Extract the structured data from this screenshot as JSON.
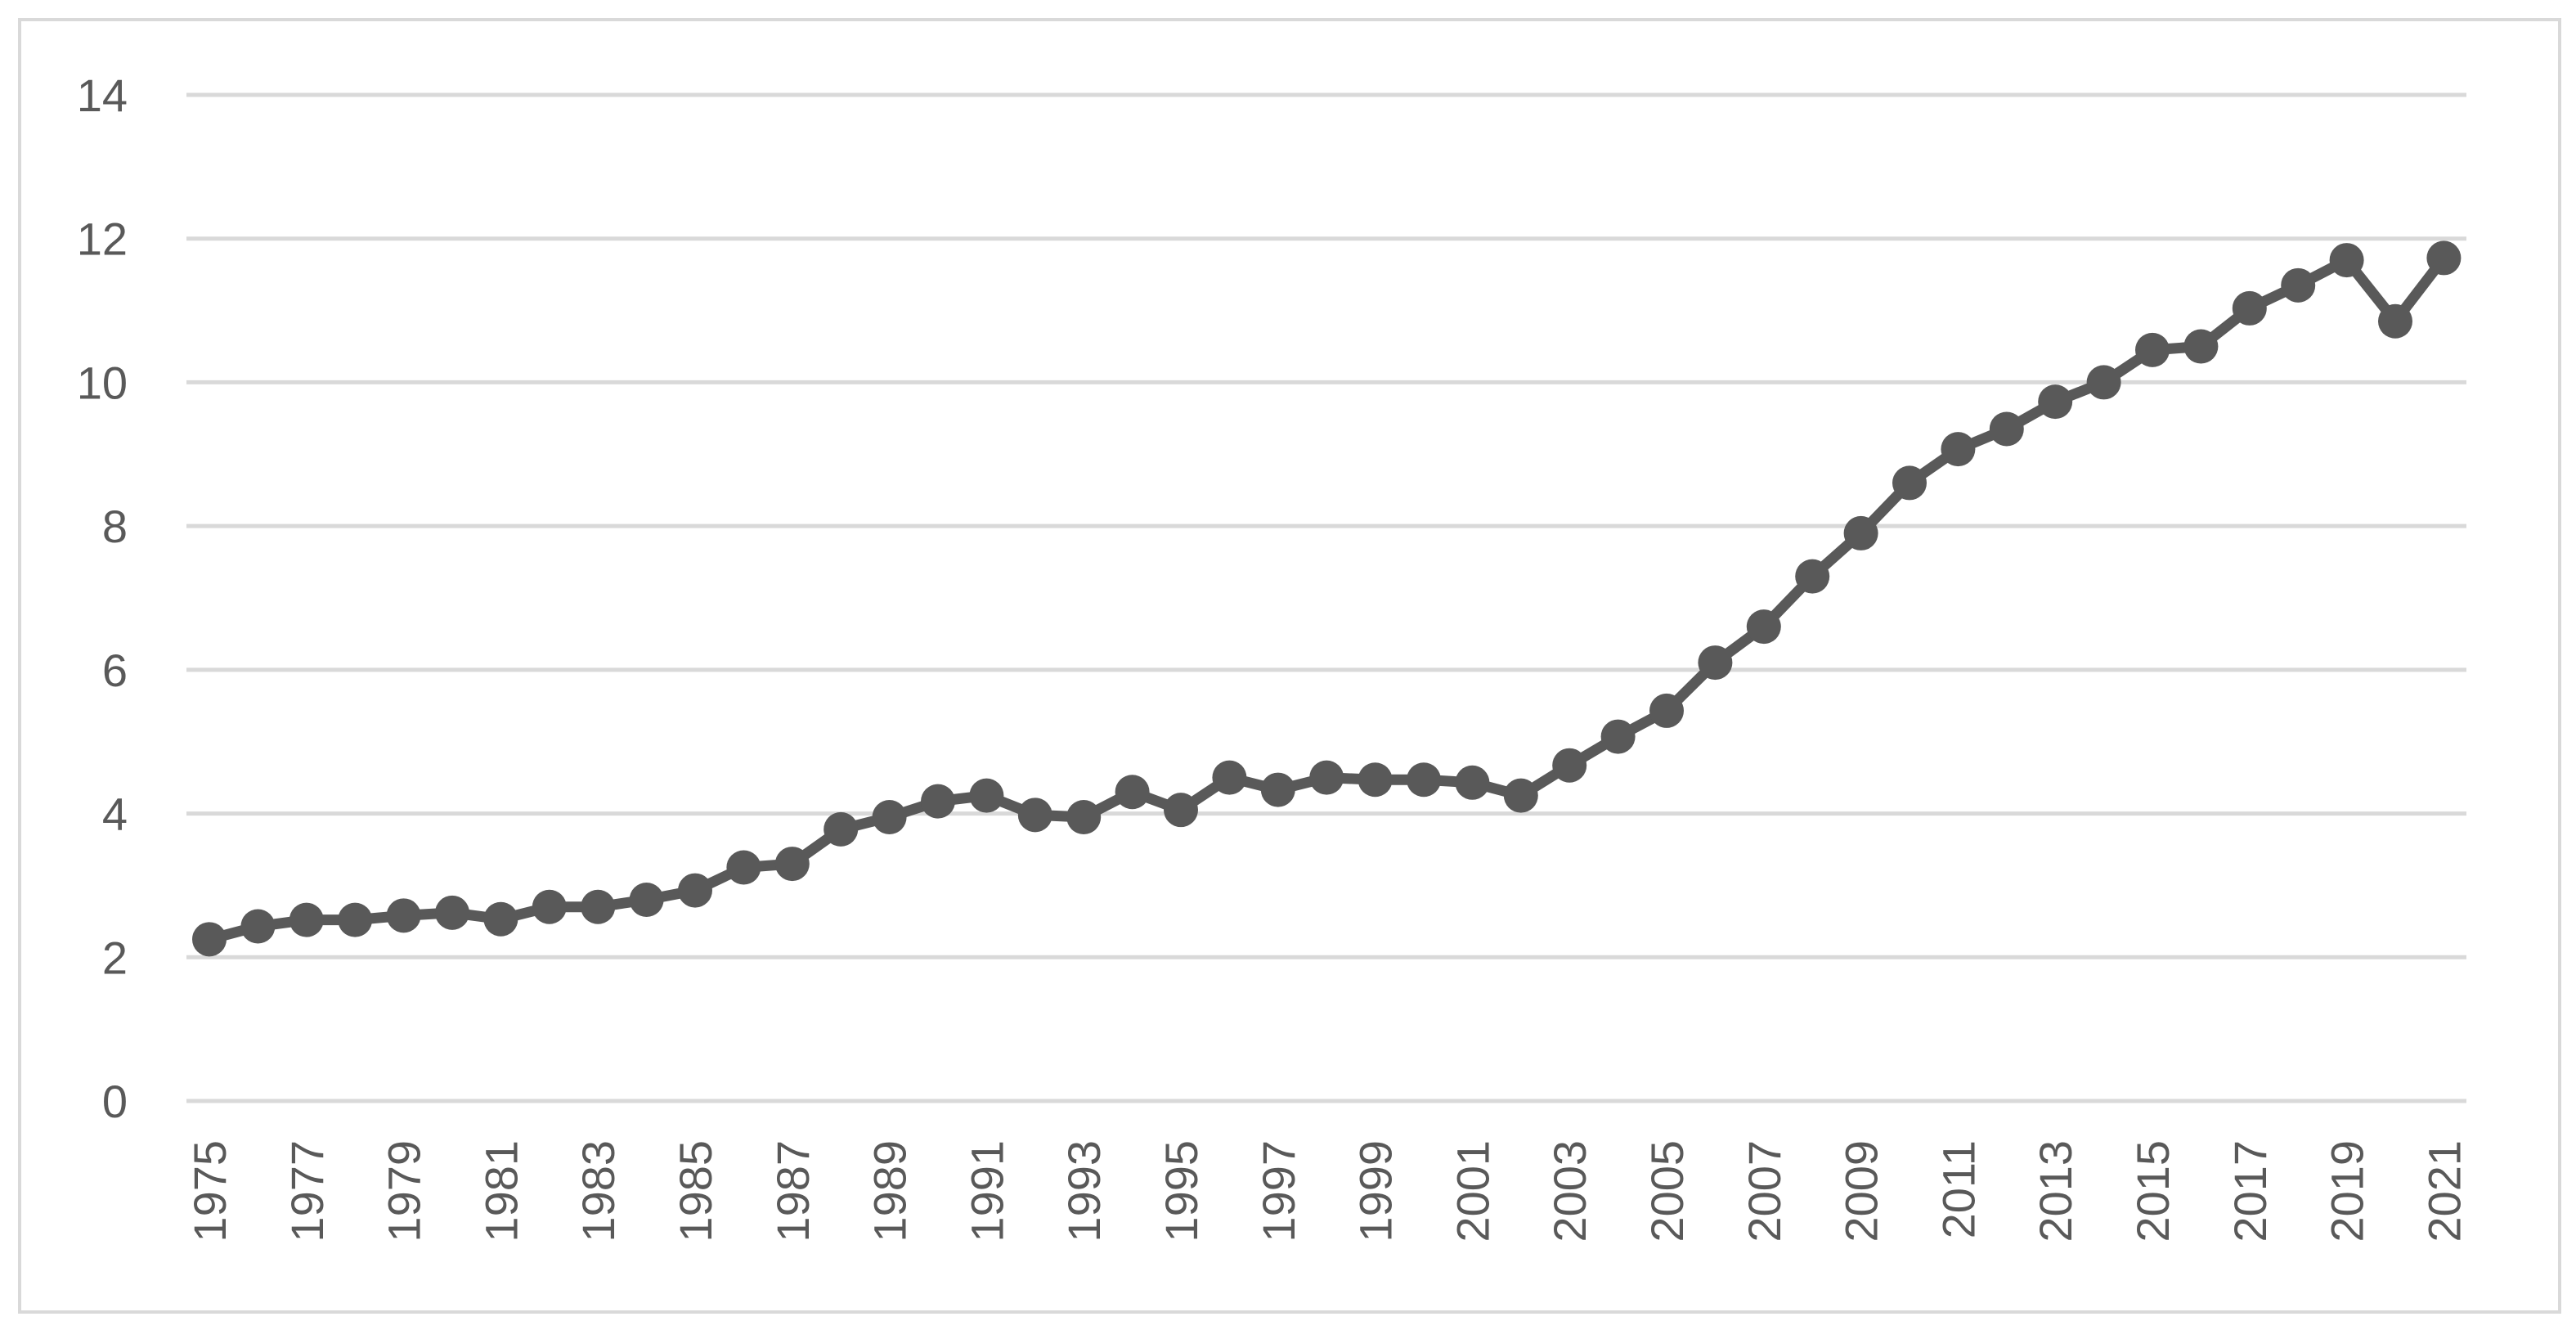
{
  "chart_data": {
    "type": "line",
    "title": "",
    "xlabel": "",
    "ylabel": "",
    "ylim": [
      0,
      14
    ],
    "yticks": [
      "0",
      "2",
      "4",
      "6",
      "8",
      "10",
      "12",
      "14"
    ],
    "xtick_labels": [
      "1975",
      "1977",
      "1979",
      "1981",
      "1983",
      "1985",
      "1987",
      "1989",
      "1991",
      "1993",
      "1995",
      "1997",
      "1999",
      "2001",
      "2003",
      "2005",
      "2007",
      "2009",
      "2011",
      "2013",
      "2015",
      "2017",
      "2019",
      "2021"
    ],
    "grid": "horizontal",
    "legend": "none",
    "colors": {
      "series": "#595959",
      "grid": "#d9d9d9",
      "text": "#595959"
    },
    "x": [
      1975,
      1976,
      1977,
      1978,
      1979,
      1980,
      1981,
      1982,
      1983,
      1984,
      1985,
      1986,
      1987,
      1988,
      1989,
      1990,
      1991,
      1992,
      1993,
      1994,
      1995,
      1996,
      1997,
      1998,
      1999,
      2000,
      2001,
      2002,
      2003,
      2004,
      2005,
      2006,
      2007,
      2008,
      2009,
      2010,
      2011,
      2012,
      2013,
      2014,
      2015,
      2016,
      2017,
      2018,
      2019,
      2020,
      2021
    ],
    "series": [
      {
        "values": [
          2.25,
          2.43,
          2.52,
          2.52,
          2.58,
          2.62,
          2.53,
          2.7,
          2.7,
          2.8,
          2.93,
          3.25,
          3.3,
          3.78,
          3.95,
          4.17,
          4.25,
          3.98,
          3.95,
          4.3,
          4.05,
          4.5,
          4.33,
          4.5,
          4.47,
          4.47,
          4.43,
          4.25,
          4.67,
          5.07,
          5.43,
          6.1,
          6.6,
          7.3,
          7.9,
          8.6,
          9.07,
          9.35,
          9.73,
          10.0,
          10.45,
          10.5,
          11.03,
          11.35,
          11.7,
          10.85,
          11.73
        ]
      }
    ]
  }
}
